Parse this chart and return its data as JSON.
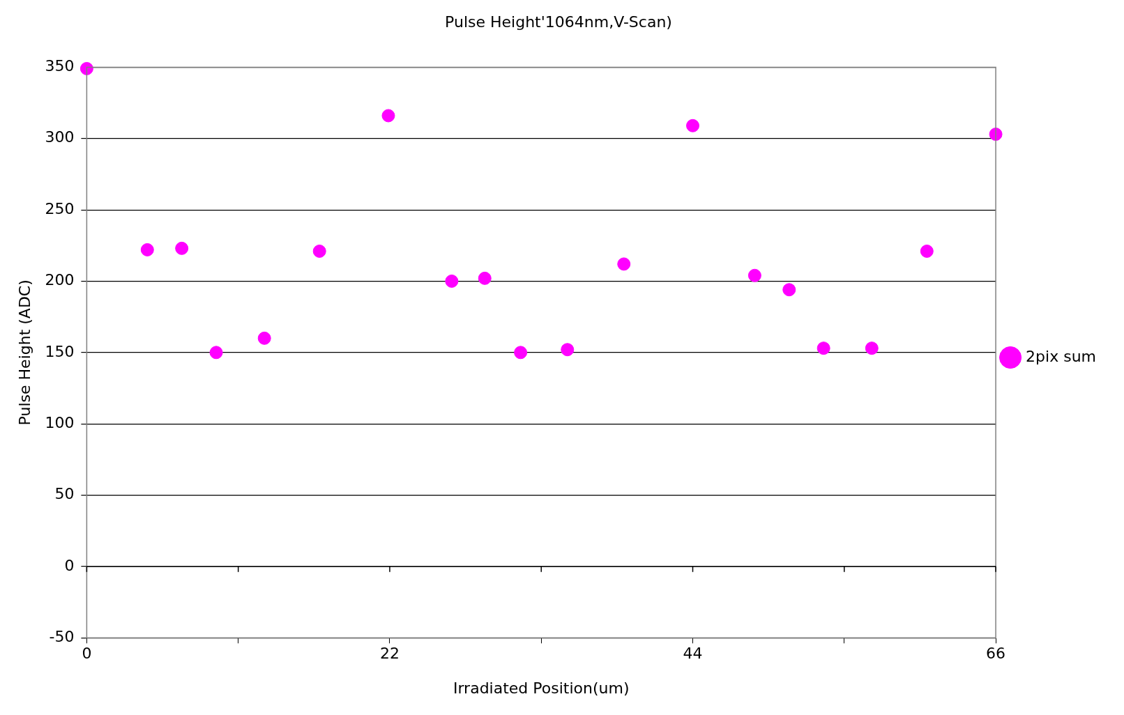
{
  "chart_data": {
    "type": "scatter",
    "title": "Pulse Height'1064nm,V-Scan)",
    "xlabel": "Irradiated Position(um)",
    "ylabel": "Pulse Height (ADC)",
    "series": [
      {
        "name": "2pix sum",
        "color": "#ff00ff",
        "x": [
          0,
          4.4,
          6.9,
          9.4,
          12.9,
          16.9,
          21.9,
          26.5,
          28.9,
          31.5,
          34.9,
          39,
          44,
          48.5,
          51,
          53.5,
          57,
          61,
          66
        ],
        "values": [
          349,
          222,
          223,
          150,
          160,
          221,
          316,
          200,
          202,
          150,
          152,
          212,
          309,
          204,
          194,
          153,
          153,
          221,
          303
        ]
      }
    ],
    "xlim": [
      0,
      66
    ],
    "xticks": [
      0,
      {
        "value": 11,
        "label": null
      },
      22,
      {
        "value": 33,
        "label": null
      },
      44,
      {
        "value": 55,
        "label": null
      },
      66
    ],
    "ylim": [
      -50,
      350
    ],
    "yticks": [
      -50,
      0,
      50,
      100,
      150,
      200,
      250,
      300,
      350
    ],
    "grid": "y",
    "legend": "right",
    "marker": "circle"
  }
}
